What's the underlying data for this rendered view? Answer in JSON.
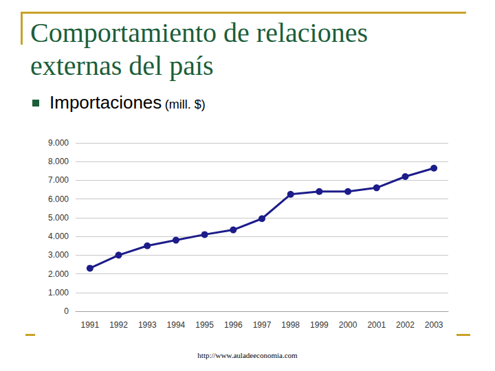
{
  "chart_data": {
    "type": "line",
    "title": "Comportamiento de relaciones externas del país",
    "subtitle": "Importaciones",
    "ylabel": "(mill. $)",
    "annotations": [
      "http://www.auladeeconomia.com"
    ],
    "categories": [
      "1991",
      "1992",
      "1993",
      "1994",
      "1995",
      "1996",
      "1997",
      "1998",
      "1999",
      "2000",
      "2001",
      "2002",
      "2003"
    ],
    "values": [
      2300,
      3000,
      3500,
      3800,
      4100,
      4350,
      4950,
      6250,
      6400,
      6400,
      6600,
      7200,
      7650
    ],
    "color": "#1c1c8a",
    "marker": "circle",
    "ylim": [
      0,
      9000
    ],
    "yticks": [
      0,
      {
        "value": 1000,
        "label": "1.000"
      },
      {
        "value": 2000,
        "label": "2.000"
      },
      {
        "value": 3000,
        "label": "3.000"
      },
      {
        "value": 4000,
        "label": "4.000"
      },
      {
        "value": 5000,
        "label": "5.000"
      },
      {
        "value": 6000,
        "label": "6.000"
      },
      {
        "value": 7000,
        "label": "7.000"
      },
      {
        "value": 8000,
        "label": "8.000"
      },
      {
        "value": 9000,
        "label": "9.000"
      }
    ],
    "grid": true
  }
}
